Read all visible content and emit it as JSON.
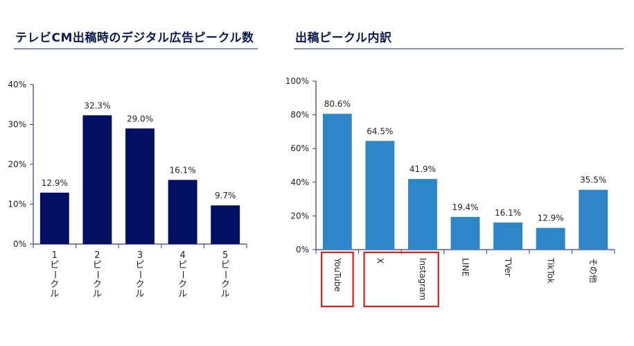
{
  "chart_data": [
    {
      "type": "bar",
      "title": "テレビCM出稿時のデジタル広告ピークル数",
      "categories": [
        "1ピークル",
        "2ピークル",
        "3ピークル",
        "4ピークル",
        "5ピークル"
      ],
      "values": [
        12.9,
        32.3,
        29.0,
        16.1,
        9.7
      ],
      "value_labels": [
        "12.9%",
        "32.3%",
        "29.0%",
        "16.1%",
        "9.7%"
      ],
      "ylim": [
        0,
        40
      ],
      "yticks": [
        "0%",
        "10%",
        "20%",
        "30%",
        "40%"
      ],
      "bar_color": "#021064",
      "grid": false,
      "legend": "none"
    },
    {
      "type": "bar",
      "title": "出稿ピークル内訳",
      "categories": [
        "YouTube",
        "X",
        "Instagram",
        "LINE",
        "TVer",
        "TikTok",
        "その他"
      ],
      "values": [
        80.6,
        64.5,
        41.9,
        19.4,
        16.1,
        12.9,
        35.5
      ],
      "value_labels": [
        "80.6%",
        "64.5%",
        "41.9%",
        "19.4%",
        "16.1%",
        "12.9%",
        "35.5%"
      ],
      "ylim": [
        0,
        100
      ],
      "yticks": [
        "0%",
        "20%",
        "40%",
        "60%",
        "80%",
        "100%"
      ],
      "bar_color": "#2e86c8",
      "highlight_color": "#e31a1a",
      "highlight_groups": [
        [
          "YouTube"
        ],
        [
          "X",
          "Instagram"
        ]
      ],
      "grid": false,
      "legend": "none"
    }
  ]
}
